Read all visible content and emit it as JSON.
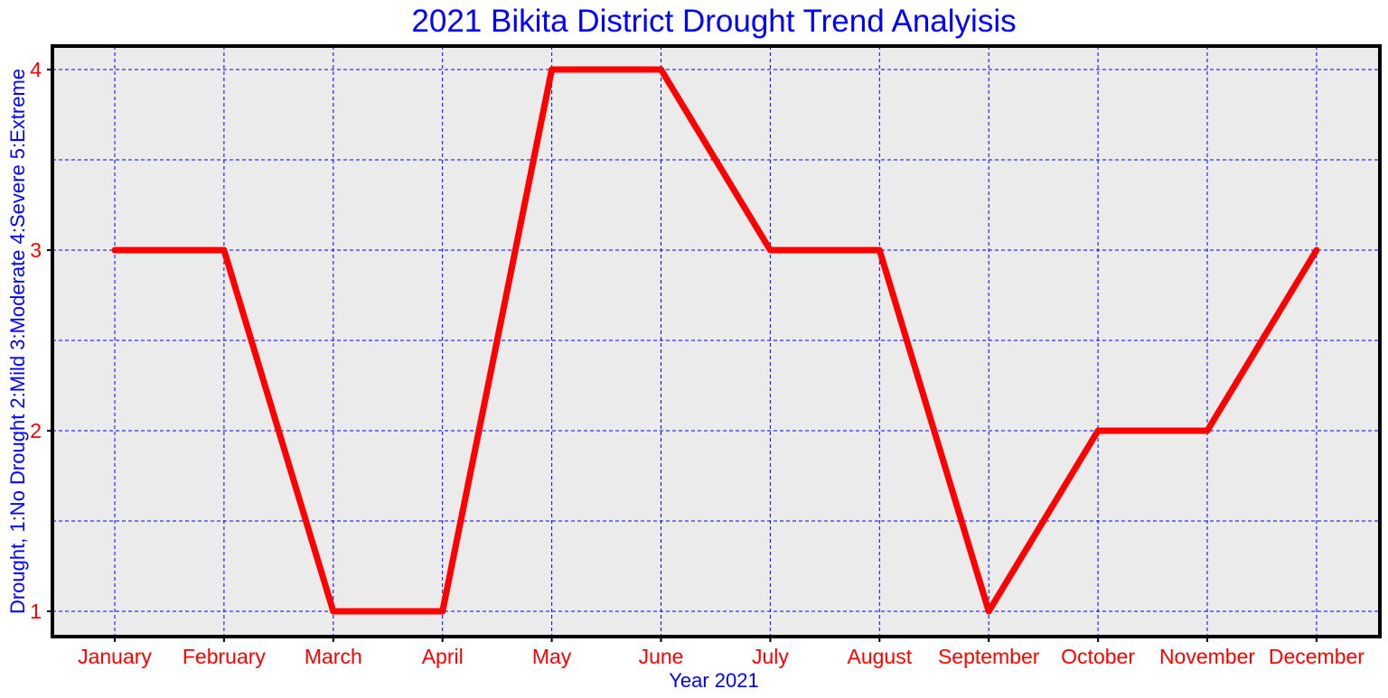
{
  "chart_data": {
    "type": "line",
    "title": "2021 Bikita District Drought Trend Analyisis",
    "xlabel": "Year 2021",
    "ylabel": "Drought, 1:No Drought 2:Mild 3:Moderate 4:Severe 5:Extreme",
    "categories": [
      "January",
      "February",
      "March",
      "April",
      "May",
      "June",
      "July",
      "August",
      "September",
      "October",
      "November",
      "December"
    ],
    "series": [
      {
        "values": [
          3,
          3,
          1,
          1,
          4,
          4,
          3,
          3,
          1,
          2,
          2,
          3
        ]
      }
    ],
    "ylim": [
      0.86,
      4.13
    ],
    "yticks": [
      1,
      2,
      3,
      4
    ],
    "y_minor_gridlines": [
      1.5,
      2.5,
      3.5
    ],
    "grid": true,
    "grid_style": "dashed",
    "colors": {
      "title": "#0000ff",
      "axis_label": "#0000ff",
      "tick_label": "#ff0000",
      "line": "#ff0000",
      "grid": "#0000ff",
      "plot_background": "#ebebeb",
      "frame": "#000000"
    }
  }
}
